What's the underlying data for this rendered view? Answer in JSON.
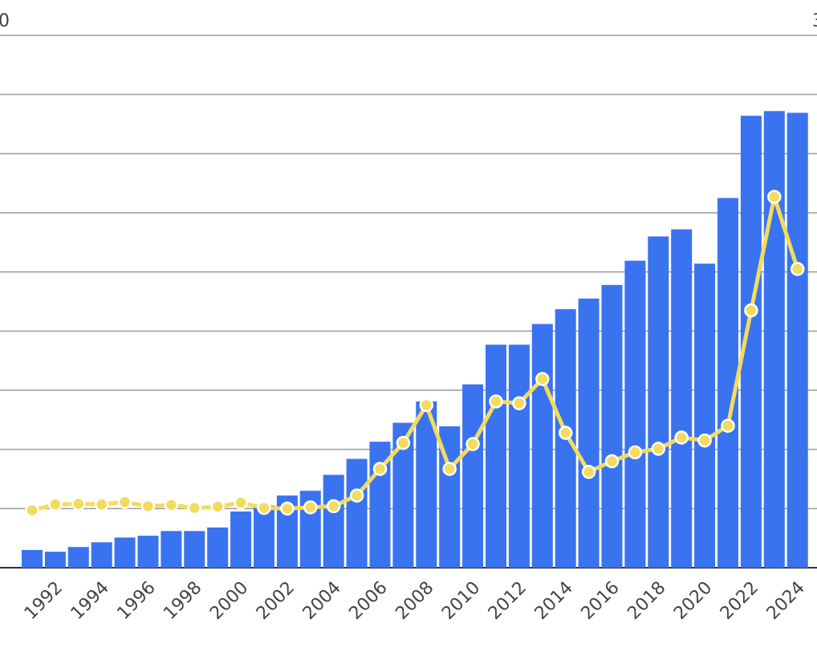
{
  "chart_data": {
    "type": "bar",
    "title": "",
    "xlabel": "",
    "ylabel": "",
    "x_tick_labels": [
      "1992",
      "1994",
      "1996",
      "1998",
      "2000",
      "2002",
      "2004",
      "2006",
      "2008",
      "2010",
      "2012",
      "2014",
      "2016",
      "2018",
      "2020",
      "2022",
      "2024"
    ],
    "y_left_top_label": "0",
    "y_right_top_label": "3",
    "grid": true,
    "bar_color": "#3a73f0",
    "line_color": "#f3dc5c",
    "series": [
      {
        "type": "bar",
        "axis": "left",
        "x": [
          1991,
          1992,
          1993,
          1994,
          1995,
          1996,
          1997,
          1998,
          1999,
          2000,
          2001,
          2002,
          2003,
          2004,
          2005,
          2006,
          2007,
          2008,
          2009,
          2010,
          2011,
          2012,
          2013,
          2014,
          2015,
          2016,
          2017,
          2018,
          2019,
          2020,
          2021,
          2022,
          2023,
          2024
        ],
        "values": [
          0.3,
          0.27,
          0.35,
          0.43,
          0.51,
          0.54,
          0.62,
          0.62,
          0.68,
          0.95,
          1.05,
          1.22,
          1.3,
          1.57,
          1.84,
          2.13,
          2.45,
          2.81,
          2.39,
          3.1,
          3.77,
          3.77,
          4.12,
          4.37,
          4.55,
          4.78,
          5.19,
          5.6,
          5.72,
          5.14,
          6.25,
          7.64,
          7.72,
          7.69
        ]
      },
      {
        "type": "line",
        "axis": "right",
        "x": [
          1991,
          1992,
          1993,
          1994,
          1995,
          1996,
          1997,
          1998,
          1999,
          2000,
          2001,
          2002,
          2003,
          2004,
          2005,
          2006,
          2007,
          2008,
          2009,
          2010,
          2011,
          2012,
          2013,
          2014,
          2015,
          2016,
          2017,
          2018,
          2019,
          2020,
          2021,
          2022,
          2023,
          2024
        ],
        "values": [
          0.97,
          1.07,
          1.08,
          1.07,
          1.11,
          1.04,
          1.06,
          1.01,
          1.03,
          1.1,
          1.01,
          1.0,
          1.02,
          1.04,
          1.22,
          1.67,
          2.11,
          2.75,
          1.67,
          2.09,
          2.81,
          2.78,
          3.19,
          2.28,
          1.62,
          1.8,
          1.95,
          2.01,
          2.2,
          2.15,
          2.4,
          4.35,
          6.27,
          5.05
        ]
      }
    ],
    "y_left_range": [
      0,
      8
    ],
    "y_right_range": [
      0,
      8
    ]
  }
}
